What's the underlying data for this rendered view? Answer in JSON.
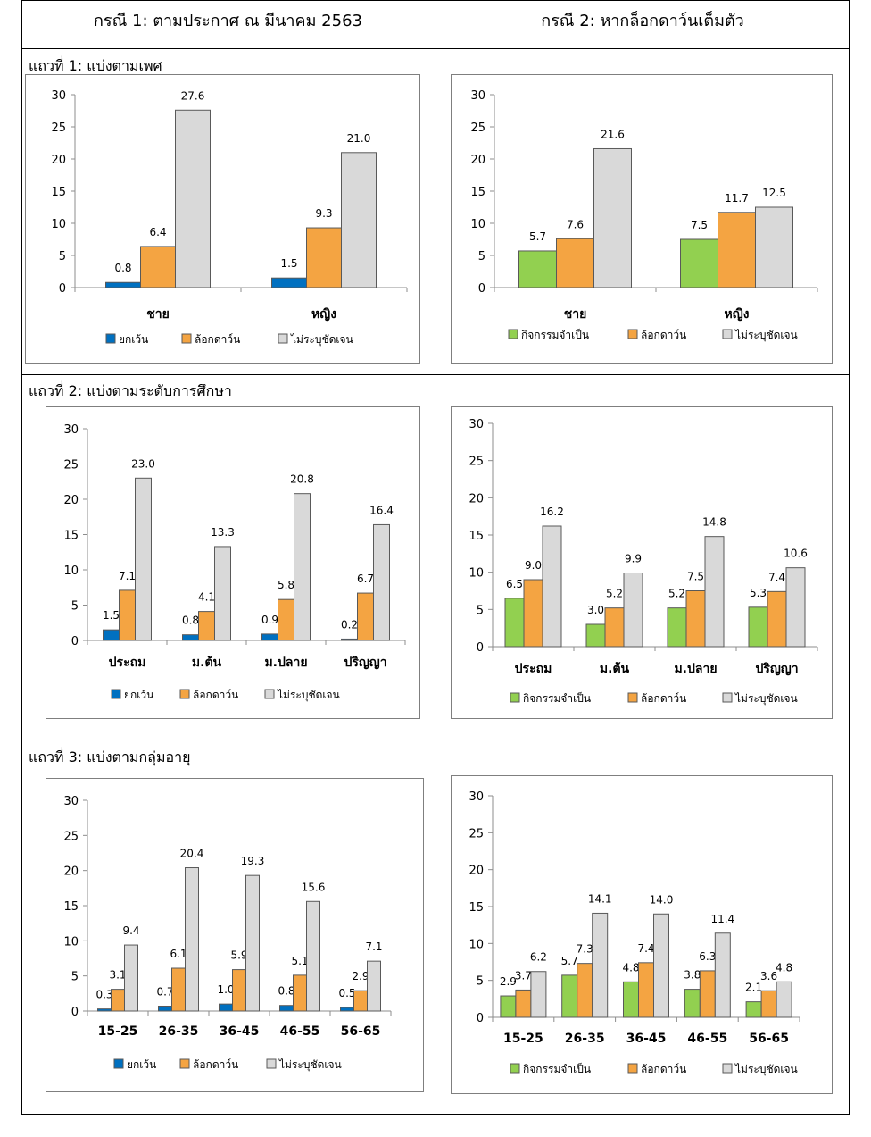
{
  "headers": {
    "left": "กรณี 1: ตามประกาศ ณ มีนาคม 2563",
    "right": "กรณี 2:  หากล็อกดาว์นเต็มตัว"
  },
  "rows": [
    {
      "label": "แถวที่ 1: แบ่งตามเพศ"
    },
    {
      "label": "แถวที่ 2: แบ่งตามระดับการศึกษา"
    },
    {
      "label": "แถวที่ 3: แบ่งตามกลุ่มอายุ"
    }
  ],
  "colors": {
    "exempt": "#0070c0",
    "essential": "#92d050",
    "lockdown": "#f4a442",
    "unspecified": "#d9d9d9"
  },
  "chart_data": [
    {
      "type": "bar",
      "ylim": [
        0,
        30
      ],
      "yticks": [
        0,
        5,
        10,
        15,
        20,
        25,
        30
      ],
      "categories": [
        "ชาย",
        "หญิง"
      ],
      "series": [
        {
          "name": "ยกเว้น",
          "color": "#0070c0",
          "values": [
            0.8,
            1.5
          ],
          "labels": [
            "0.8",
            "1.5"
          ]
        },
        {
          "name": "ล้อกดาว์น",
          "color": "#f4a442",
          "values": [
            6.4,
            9.3
          ],
          "labels": [
            "6.4",
            "9.3"
          ]
        },
        {
          "name": "ไม่ระบุชัดเจน",
          "color": "#d9d9d9",
          "values": [
            27.6,
            21.0
          ],
          "labels": [
            "27.6",
            "21.0"
          ]
        }
      ]
    },
    {
      "type": "bar",
      "ylim": [
        0,
        30
      ],
      "yticks": [
        0,
        5,
        10,
        15,
        20,
        25,
        30
      ],
      "categories": [
        "ชาย",
        "หญิง"
      ],
      "series": [
        {
          "name": "กิจกรรมจำเป็น",
          "color": "#92d050",
          "values": [
            5.7,
            7.5
          ],
          "labels": [
            "5.7",
            "7.5"
          ]
        },
        {
          "name": "ล้อกดาว์น",
          "color": "#f4a442",
          "values": [
            7.6,
            11.7
          ],
          "labels": [
            "7.6",
            "11.7"
          ]
        },
        {
          "name": "ไม่ระบุชัดเจน",
          "color": "#d9d9d9",
          "values": [
            21.6,
            12.5
          ],
          "labels": [
            "21.6",
            "12.5"
          ]
        }
      ]
    },
    {
      "type": "bar",
      "ylim": [
        0,
        30
      ],
      "yticks": [
        0,
        5,
        10,
        15,
        20,
        25,
        30
      ],
      "categories": [
        "ประถม",
        "ม.ต้น",
        "ม.ปลาย",
        "ปริญญา"
      ],
      "series": [
        {
          "name": "ยกเว้น",
          "color": "#0070c0",
          "values": [
            1.5,
            0.8,
            0.9,
            0.2
          ],
          "labels": [
            "1.5",
            "0.8",
            "0.9",
            "0.2"
          ]
        },
        {
          "name": "ล้อกดาว์น",
          "color": "#f4a442",
          "values": [
            7.1,
            4.1,
            5.8,
            6.7
          ],
          "labels": [
            "7.1",
            "4.1",
            "5.8",
            "6.7"
          ]
        },
        {
          "name": "ไม่ระบุชัดเจน",
          "color": "#d9d9d9",
          "values": [
            23.0,
            13.3,
            20.8,
            16.4
          ],
          "labels": [
            "23.0",
            "13.3",
            "20.8",
            "16.4"
          ]
        }
      ]
    },
    {
      "type": "bar",
      "ylim": [
        0,
        30
      ],
      "yticks": [
        0,
        5,
        10,
        15,
        20,
        25,
        30
      ],
      "categories": [
        "ประถม",
        "ม.ต้น",
        "ม.ปลาย",
        "ปริญญา"
      ],
      "series": [
        {
          "name": "กิจกรรมจำเป็น",
          "color": "#92d050",
          "values": [
            6.5,
            3.0,
            5.2,
            5.3
          ],
          "labels": [
            "6.5",
            "3.0",
            "5.2",
            "5.3"
          ]
        },
        {
          "name": "ล้อกดาว์น",
          "color": "#f4a442",
          "values": [
            9.0,
            5.2,
            7.5,
            7.4
          ],
          "labels": [
            "9.0",
            "5.2",
            "7.5",
            "7.4"
          ]
        },
        {
          "name": "ไม่ระบุชัดเจน",
          "color": "#d9d9d9",
          "values": [
            16.2,
            9.9,
            14.8,
            10.6
          ],
          "labels": [
            "16.2",
            "9.9",
            "14.8",
            "10.6"
          ]
        }
      ]
    },
    {
      "type": "bar",
      "ylim": [
        0,
        30
      ],
      "yticks": [
        0,
        5,
        10,
        15,
        20,
        25,
        30
      ],
      "categories": [
        "15-25",
        "26-35",
        "36-45",
        "46-55",
        "56-65"
      ],
      "series": [
        {
          "name": "ยกเว้น",
          "color": "#0070c0",
          "values": [
            0.3,
            0.7,
            1.0,
            0.8,
            0.5
          ],
          "labels": [
            "0.3",
            "0.7",
            "1.0",
            "0.8",
            "0.5"
          ]
        },
        {
          "name": "ล้อกดาว์น",
          "color": "#f4a442",
          "values": [
            3.1,
            6.1,
            5.9,
            5.1,
            2.9
          ],
          "labels": [
            "3.1",
            "6.1",
            "5.9",
            "5.1",
            "2.9"
          ]
        },
        {
          "name": "ไม่ระบุชัดเจน",
          "color": "#d9d9d9",
          "values": [
            9.4,
            20.4,
            19.3,
            15.6,
            7.1
          ],
          "labels": [
            "9.4",
            "20.4",
            "19.3",
            "15.6",
            "7.1"
          ]
        }
      ]
    },
    {
      "type": "bar",
      "ylim": [
        0,
        30
      ],
      "yticks": [
        0,
        5,
        10,
        15,
        20,
        25,
        30
      ],
      "categories": [
        "15-25",
        "26-35",
        "36-45",
        "46-55",
        "56-65"
      ],
      "series": [
        {
          "name": "กิจกรรมจำเป็น",
          "color": "#92d050",
          "values": [
            2.9,
            5.7,
            4.8,
            3.8,
            2.1
          ],
          "labels": [
            "2.9",
            "5.7",
            "4.8",
            "3.8",
            "2.1"
          ]
        },
        {
          "name": "ล้อกดาว์น",
          "color": "#f4a442",
          "values": [
            3.7,
            7.3,
            7.4,
            6.3,
            3.6
          ],
          "labels": [
            "3.7",
            "7.3",
            "7.4",
            "6.3",
            "3.6"
          ]
        },
        {
          "name": "ไม่ระบุชัดเจน",
          "color": "#d9d9d9",
          "values": [
            6.2,
            14.1,
            14.0,
            11.4,
            4.8
          ],
          "labels": [
            "6.2",
            "14.1",
            "14.0",
            "11.4",
            "4.8"
          ]
        }
      ]
    }
  ]
}
